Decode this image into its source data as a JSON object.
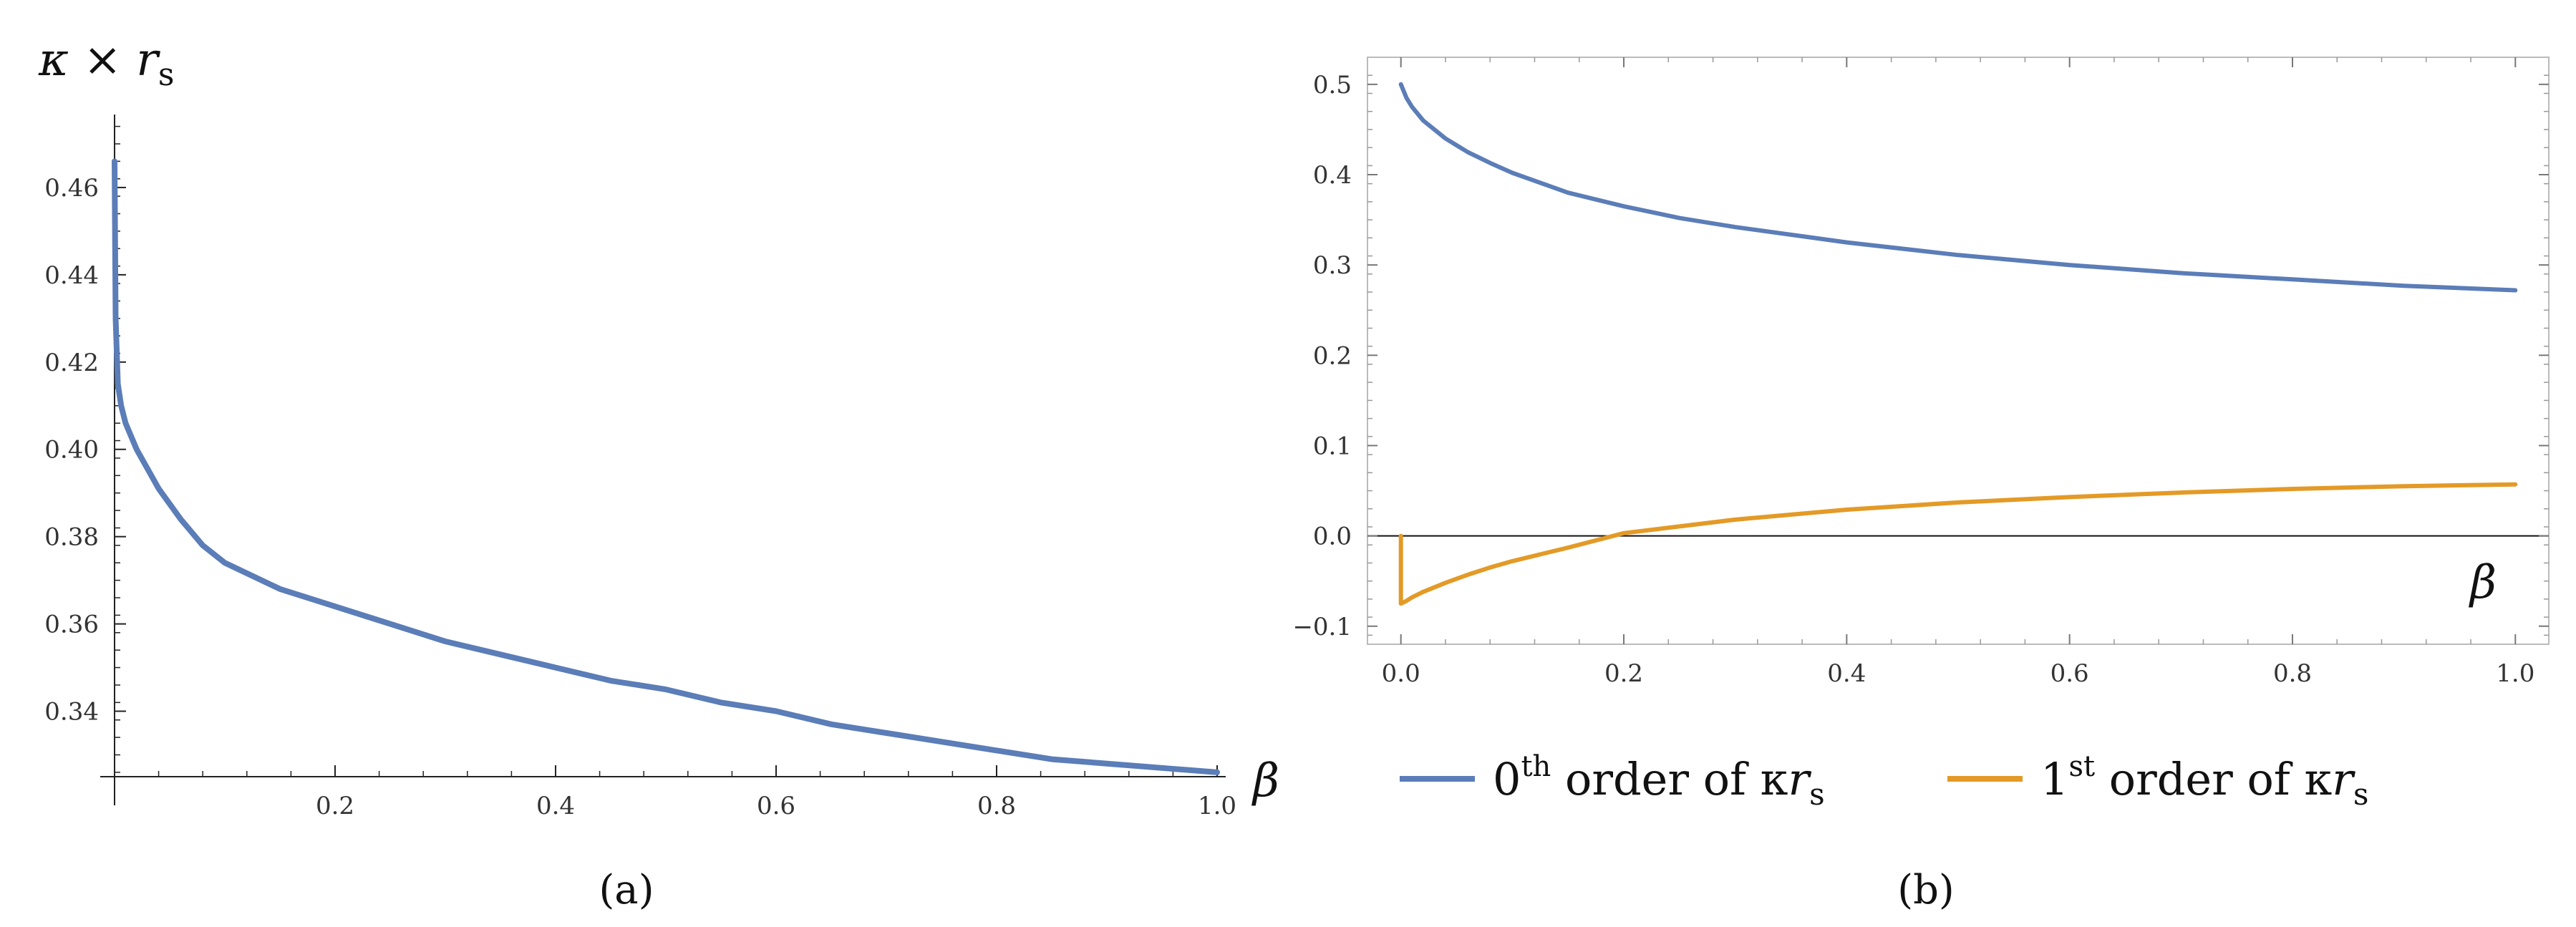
{
  "chart_data": [
    {
      "panel": "(a)",
      "type": "line",
      "ylabel": "κ × r",
      "ylabel_sub": "s",
      "xlabel": "β",
      "xlim": [
        0,
        1
      ],
      "ylim": [
        0.325,
        0.48
      ],
      "xticks": [
        0.2,
        0.4,
        0.6,
        0.8,
        1.0
      ],
      "xtick_labels": [
        "0.2",
        "0.4",
        "0.6",
        "0.8",
        "1.0"
      ],
      "yticks": [
        0.34,
        0.36,
        0.38,
        0.4,
        0.42,
        0.44,
        0.46
      ],
      "ytick_labels": [
        "0.34",
        "0.36",
        "0.38",
        "0.40",
        "0.42",
        "0.44",
        "0.46"
      ],
      "grid": false,
      "series": [
        {
          "color": "#5B7DB8",
          "x": [
            0.0,
            0.001,
            0.003,
            0.006,
            0.01,
            0.02,
            0.04,
            0.06,
            0.08,
            0.1,
            0.15,
            0.2,
            0.25,
            0.3,
            0.35,
            0.4,
            0.45,
            0.5,
            0.55,
            0.6,
            0.65,
            0.7,
            0.75,
            0.8,
            0.85,
            0.9,
            0.95,
            1.0
          ],
          "y": [
            0.466,
            0.43,
            0.415,
            0.41,
            0.406,
            0.4,
            0.391,
            0.384,
            0.378,
            0.374,
            0.368,
            0.364,
            0.36,
            0.356,
            0.353,
            0.35,
            0.347,
            0.345,
            0.342,
            0.34,
            0.337,
            0.335,
            0.333,
            0.331,
            0.329,
            0.328,
            0.327,
            0.326
          ]
        }
      ],
      "caption": "(a)"
    },
    {
      "panel": "(b)",
      "type": "line",
      "xlabel": "β",
      "xlim": [
        -0.03,
        1.03
      ],
      "ylim": [
        -0.12,
        0.53
      ],
      "xticks": [
        0.0,
        0.2,
        0.4,
        0.6,
        0.8,
        1.0
      ],
      "xtick_labels": [
        "0.0",
        "0.2",
        "0.4",
        "0.6",
        "0.8",
        "1.0"
      ],
      "yticks": [
        -0.1,
        0.0,
        0.1,
        0.2,
        0.3,
        0.4,
        0.5
      ],
      "ytick_labels": [
        "−0.1",
        "0.0",
        "0.1",
        "0.2",
        "0.3",
        "0.4",
        "0.5"
      ],
      "grid": false,
      "legend_position": "bottom",
      "series": [
        {
          "name": "0th order of κrs",
          "legend": {
            "pre": "0",
            "sup": "th",
            "mid": " order of κ",
            "r": "r",
            "sub": "s"
          },
          "color": "#5B7DB8",
          "x": [
            0.0,
            0.005,
            0.01,
            0.02,
            0.04,
            0.06,
            0.08,
            0.1,
            0.15,
            0.2,
            0.25,
            0.3,
            0.4,
            0.5,
            0.6,
            0.7,
            0.8,
            0.9,
            1.0
          ],
          "y": [
            0.5,
            0.485,
            0.475,
            0.46,
            0.44,
            0.425,
            0.413,
            0.402,
            0.38,
            0.365,
            0.352,
            0.342,
            0.325,
            0.311,
            0.3,
            0.291,
            0.284,
            0.277,
            0.272
          ]
        },
        {
          "name": "1st order of κrs",
          "legend": {
            "pre": "1",
            "sup": "st",
            "mid": " order of κ",
            "r": "r",
            "sub": "s"
          },
          "color": "#E39A26",
          "x": [
            0.0,
            0.0,
            0.005,
            0.01,
            0.02,
            0.04,
            0.06,
            0.08,
            0.1,
            0.15,
            0.2,
            0.3,
            0.4,
            0.5,
            0.6,
            0.7,
            0.8,
            0.9,
            1.0
          ],
          "y": [
            0.0,
            -0.075,
            -0.072,
            -0.068,
            -0.062,
            -0.052,
            -0.043,
            -0.035,
            -0.028,
            -0.013,
            0.003,
            0.018,
            0.029,
            0.037,
            0.043,
            0.048,
            0.052,
            0.055,
            0.057
          ]
        }
      ],
      "caption": "(b)"
    }
  ]
}
